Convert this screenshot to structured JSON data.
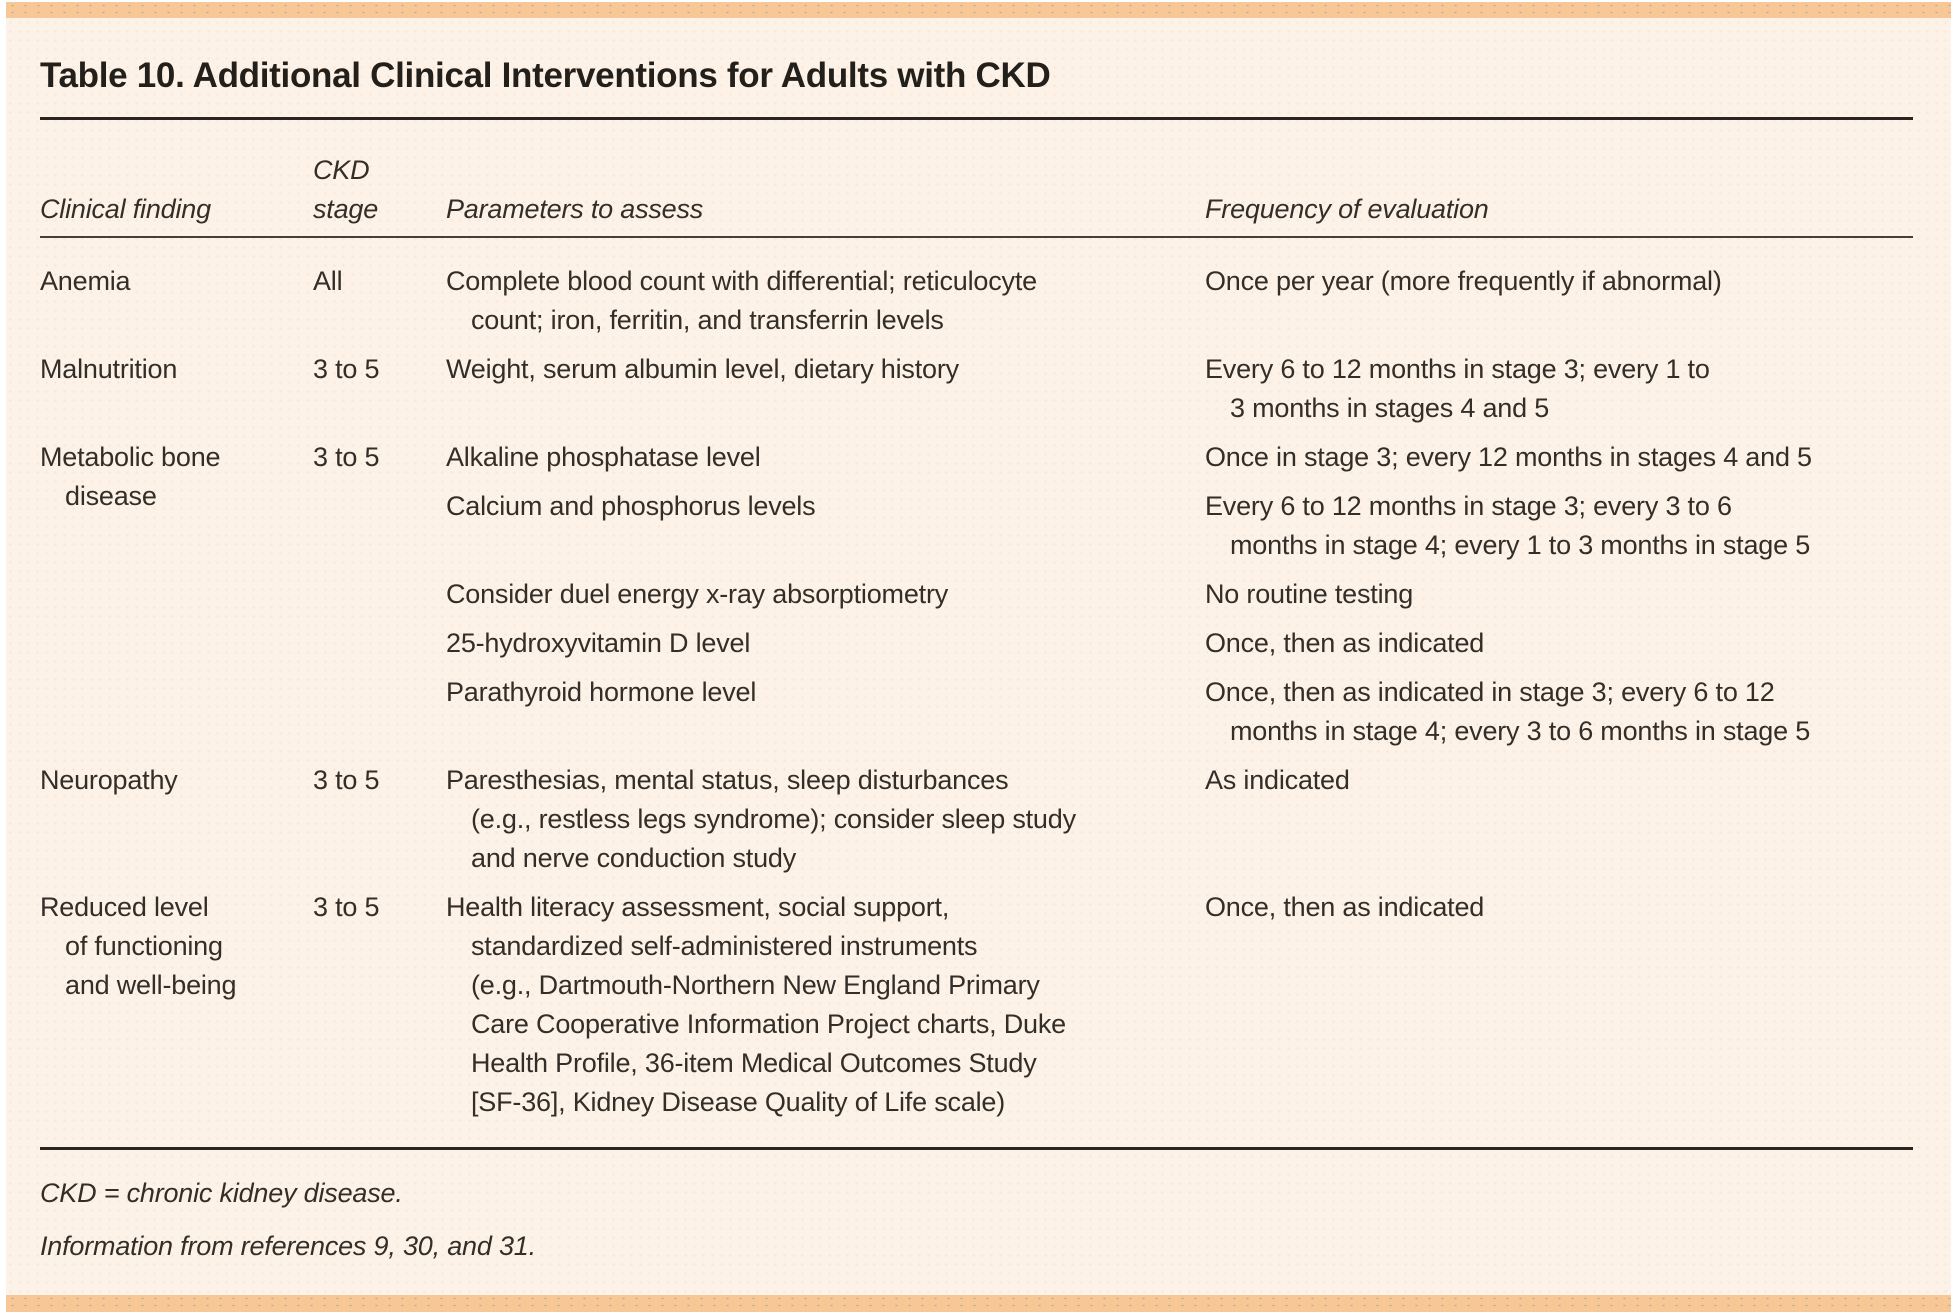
{
  "table": {
    "title": "Table 10. Additional Clinical Interventions for Adults with CKD",
    "headers": {
      "finding": "Clinical finding",
      "stage_top": "CKD",
      "stage_bottom": "stage",
      "parameters": "Parameters to assess",
      "frequency": "Frequency of evaluation"
    },
    "rows": [
      {
        "finding": [
          "Anemia"
        ],
        "stage": "All",
        "entries": [
          {
            "params": [
              "Complete blood count with differential; reticulocyte",
              "count; iron, ferritin, and transferrin levels"
            ],
            "freq": [
              "Once per year (more frequently if abnormal)"
            ]
          }
        ]
      },
      {
        "finding": [
          "Malnutrition"
        ],
        "stage": "3 to 5",
        "entries": [
          {
            "params": [
              "Weight, serum albumin level, dietary history"
            ],
            "freq": [
              "Every 6 to 12 months in stage 3; every 1 to",
              "3 months in stages 4 and 5"
            ]
          }
        ]
      },
      {
        "finding": [
          "Metabolic bone",
          "disease"
        ],
        "stage": "3 to 5",
        "entries": [
          {
            "params": [
              "Alkaline phosphatase level"
            ],
            "freq": [
              "Once in stage 3; every 12 months in stages 4 and 5"
            ]
          },
          {
            "params": [
              "Calcium and phosphorus levels"
            ],
            "freq": [
              "Every 6 to 12 months in stage 3; every 3 to 6",
              "months in stage 4; every 1 to 3 months in stage 5"
            ]
          },
          {
            "params": [
              "Consider duel energy x-ray absorptiometry"
            ],
            "freq": [
              "No routine testing"
            ]
          },
          {
            "params": [
              "25-hydroxyvitamin D level"
            ],
            "freq": [
              "Once, then as indicated"
            ]
          },
          {
            "params": [
              "Parathyroid hormone level"
            ],
            "freq": [
              "Once, then as indicated in stage 3; every 6 to 12",
              "months in stage 4; every 3 to 6 months in stage 5"
            ]
          }
        ]
      },
      {
        "finding": [
          "Neuropathy"
        ],
        "stage": "3 to 5",
        "entries": [
          {
            "params": [
              "Paresthesias, mental status, sleep disturbances",
              "(e.g., restless legs syndrome); consider sleep study",
              "and nerve conduction study"
            ],
            "freq": [
              "As indicated"
            ]
          }
        ]
      },
      {
        "finding": [
          "Reduced level",
          "of functioning",
          "and well-being"
        ],
        "stage": "3 to 5",
        "entries": [
          {
            "params": [
              "Health literacy assessment, social support,",
              "standardized self-administered instruments",
              "(e.g., Dartmouth-Northern New England Primary",
              "Care Cooperative Information Project charts, Duke",
              "Health Profile, 36-item Medical Outcomes Study",
              "[SF-36], Kidney Disease Quality of Life scale)"
            ],
            "freq": [
              "Once, then as indicated"
            ]
          }
        ]
      }
    ],
    "footnotes": {
      "abbreviation": "CKD = chronic kidney disease.",
      "source": "Information from references 9, 30, and 31."
    },
    "colors": {
      "accent_bar": "#f7c795",
      "background": "#fdf2e7",
      "text": "#332e28",
      "rule": "#2a2520"
    }
  }
}
